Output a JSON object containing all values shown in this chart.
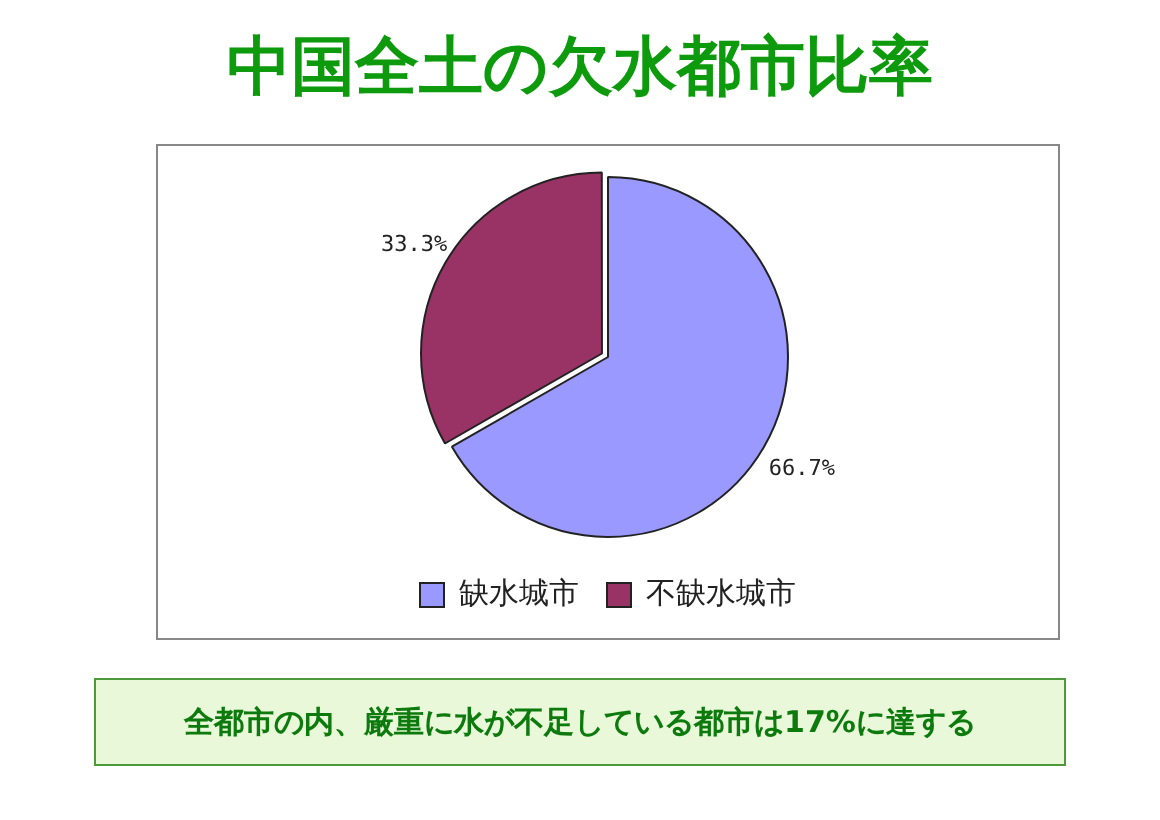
{
  "chart_data": {
    "type": "pie",
    "title": "中国全土の欠水都市比率",
    "categories": [
      "缺水城市",
      "不缺水城市"
    ],
    "values": [
      66.7,
      33.3
    ],
    "colors": [
      "#9999ff",
      "#993366"
    ],
    "value_labels": [
      "66.7%",
      "33.3%"
    ],
    "legend": "bottom",
    "annotations": [
      "全都市の内、厳重に水が不足している都市は17%に達する"
    ]
  }
}
